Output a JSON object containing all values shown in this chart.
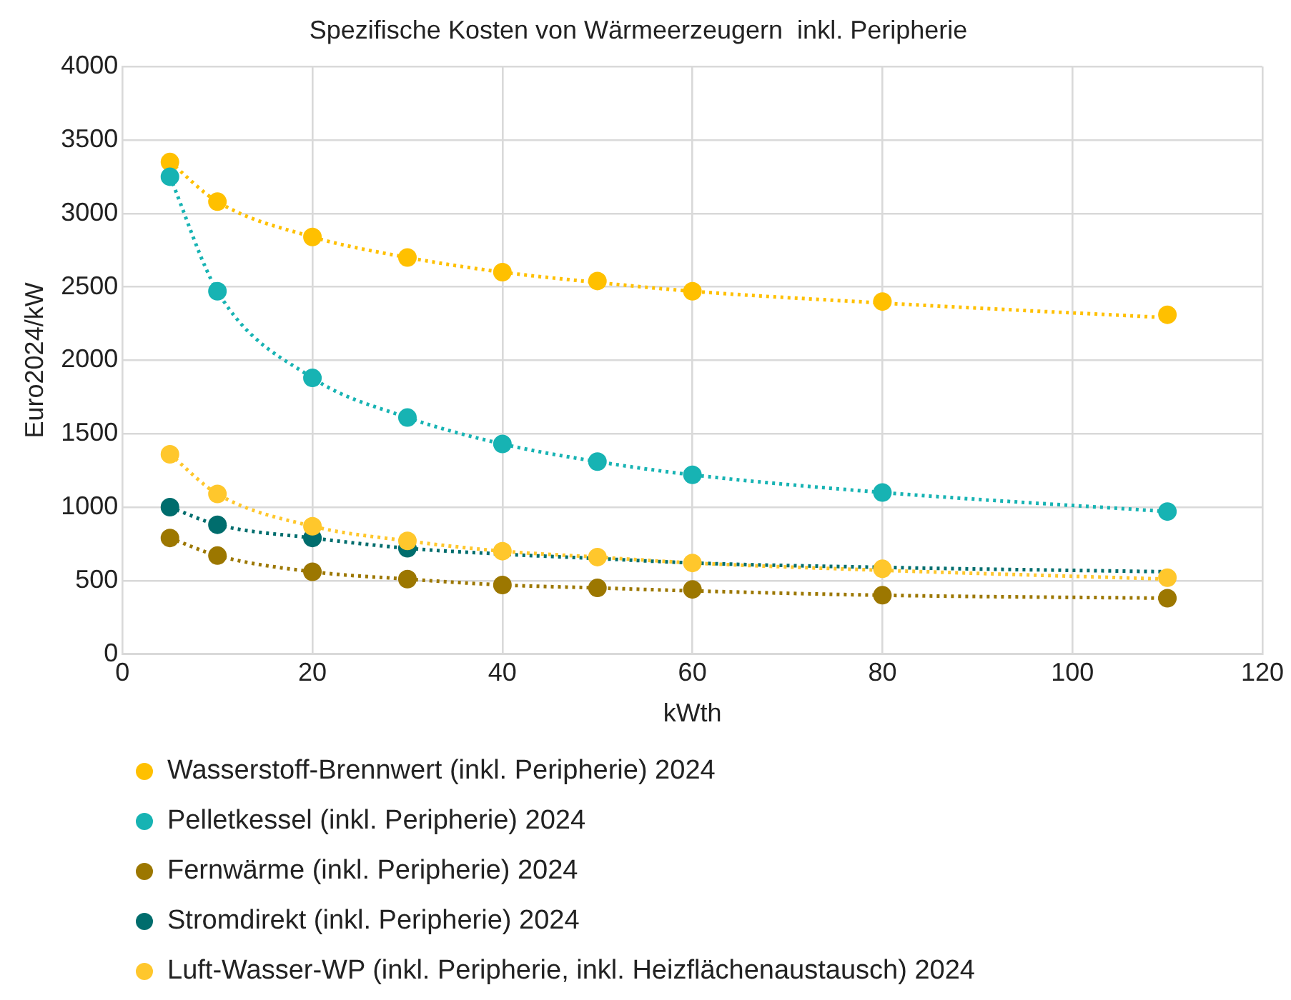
{
  "chart_data": {
    "type": "scatter",
    "title": "Spezifische Kosten von Wärmeerzeugern  inkl. Peripherie",
    "xlabel": "kWth",
    "ylabel": "Euro2024/kW",
    "x": [
      5,
      10,
      20,
      30,
      40,
      50,
      60,
      80,
      110
    ],
    "xlim": [
      0,
      120
    ],
    "xticks": [
      0,
      20,
      40,
      60,
      80,
      100,
      120
    ],
    "ylim": [
      0,
      4000
    ],
    "yticks": [
      0,
      500,
      1000,
      1500,
      2000,
      2500,
      3000,
      3500,
      4000
    ],
    "grid": true,
    "legend": "bottom",
    "marker": "circle",
    "series": [
      {
        "name": "Wasserstoff-Brennwert (inkl. Peripherie) 2024",
        "color": "#ffc000",
        "values": [
          3350,
          3080,
          2840,
          2700,
          2600,
          2540,
          2470,
          2400,
          2310
        ]
      },
      {
        "name": "Pelletkessel (inkl. Peripherie) 2024",
        "color": "#17b3b3",
        "values": [
          3250,
          2470,
          1880,
          1610,
          1430,
          1310,
          1220,
          1100,
          970
        ]
      },
      {
        "name": "Fernwärme (inkl. Peripherie) 2024",
        "color": "#9c7700",
        "values": [
          790,
          670,
          560,
          510,
          470,
          450,
          440,
          400,
          380
        ]
      },
      {
        "name": "Stromdirekt (inkl. Peripherie) 2024",
        "color": "#006d6d",
        "values": [
          1000,
          880,
          790,
          720,
          null,
          null,
          null,
          null,
          null
        ]
      },
      {
        "name": "Luft-Wasser-WP (inkl. Peripherie, inkl. Heizflächenaustausch) 2024",
        "color": "#ffc72c",
        "values": [
          1360,
          1090,
          870,
          770,
          700,
          660,
          620,
          580,
          520
        ]
      },
      {
        "type": "line",
        "color": "#ffc000",
        "line_style": "dotted",
        "marker": "none",
        "x": [
          5,
          10,
          20,
          30,
          40,
          50,
          60,
          80,
          110
        ],
        "values": [
          3350,
          3080,
          2840,
          2700,
          2600,
          2530,
          2470,
          2390,
          2290
        ]
      },
      {
        "type": "line",
        "color": "#17b3b3",
        "line_style": "dotted",
        "marker": "none",
        "x": [
          5,
          10,
          20,
          30,
          40,
          50,
          60,
          80,
          110
        ],
        "values": [
          3250,
          2470,
          1880,
          1610,
          1430,
          1310,
          1220,
          1100,
          970
        ]
      },
      {
        "type": "line",
        "color": "#9c7700",
        "line_style": "dotted",
        "marker": "none",
        "x": [
          5,
          10,
          20,
          30,
          40,
          50,
          60,
          80,
          110
        ],
        "values": [
          790,
          670,
          560,
          510,
          470,
          450,
          430,
          400,
          380
        ]
      },
      {
        "type": "line",
        "color": "#006d6d",
        "line_style": "dotted",
        "marker": "none",
        "x": [
          5,
          10,
          20,
          30,
          40,
          50,
          60,
          80,
          110
        ],
        "values": [
          1000,
          880,
          790,
          720,
          680,
          650,
          620,
          590,
          560
        ]
      },
      {
        "type": "line",
        "color": "#ffc72c",
        "line_style": "dotted",
        "marker": "none",
        "x": [
          5,
          10,
          20,
          30,
          40,
          50,
          60,
          80,
          110
        ],
        "values": [
          1360,
          1090,
          870,
          770,
          700,
          660,
          620,
          570,
          510
        ]
      }
    ]
  }
}
